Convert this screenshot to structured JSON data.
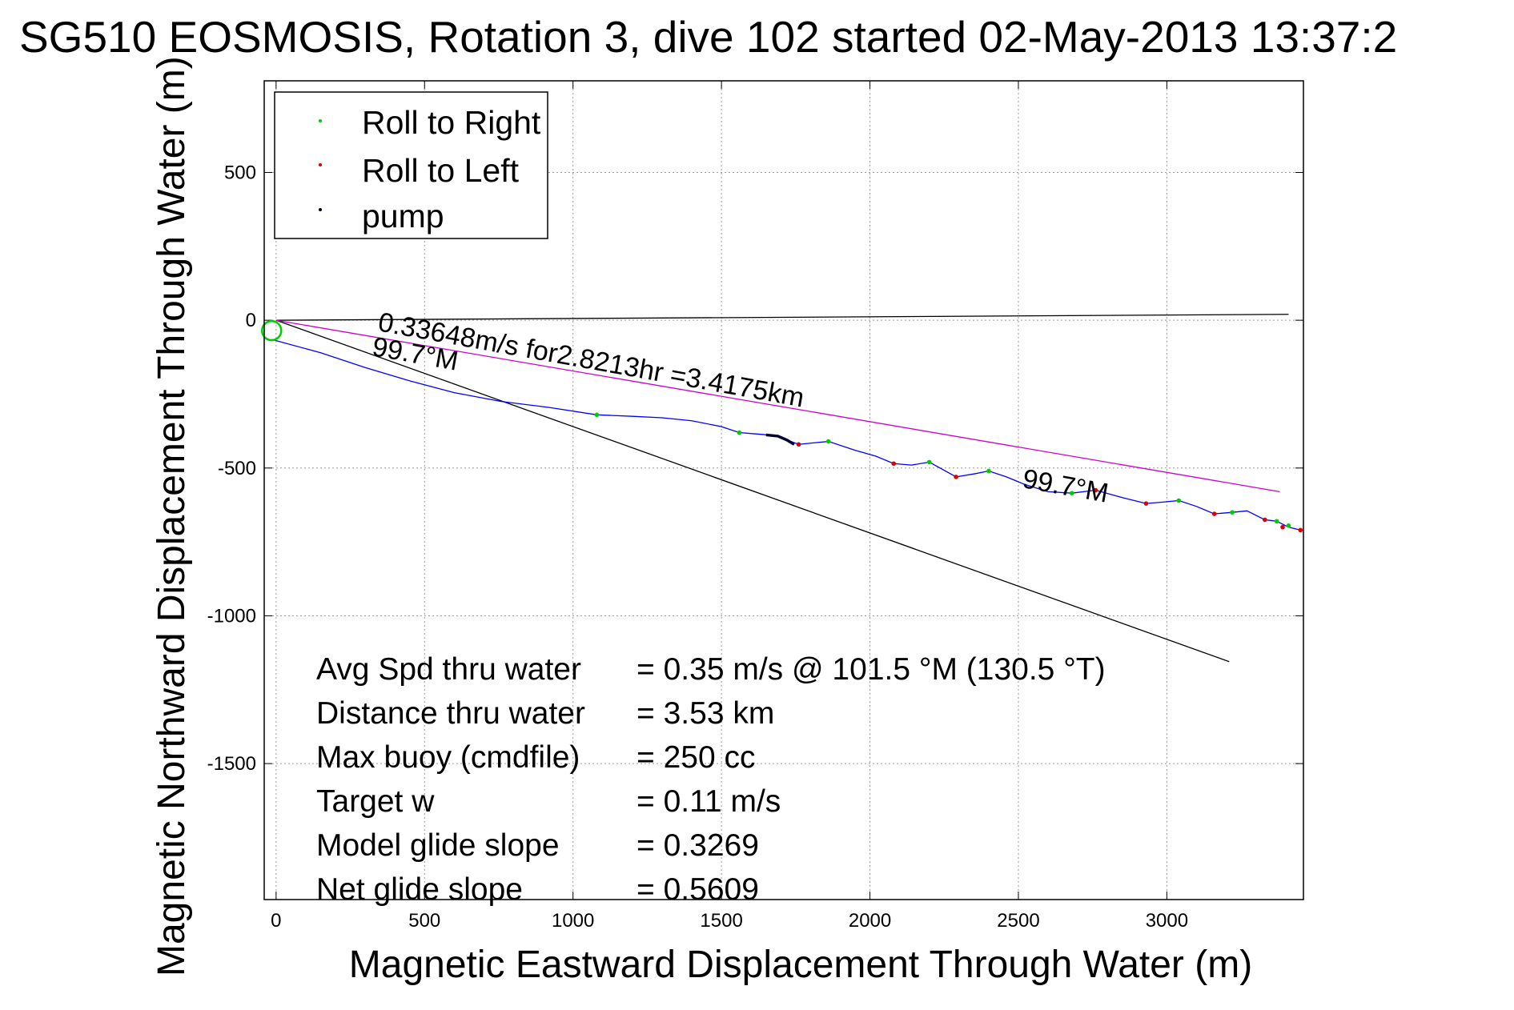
{
  "chart_data": {
    "type": "line",
    "title": "SG510 EOSMOSIS, Rotation 3, dive 102 started 02-May-2013 13:37:2",
    "xlabel": "Magnetic Eastward Displacement Through Water (m)",
    "ylabel": "Magnetic Northward Displacement Through Water (m)",
    "xlim": [
      -40,
      3460
    ],
    "ylim": [
      -1960,
      810
    ],
    "xticks": [
      0,
      500,
      1000,
      1500,
      2000,
      2500,
      3000
    ],
    "yticks": [
      500,
      0,
      -500,
      -1000,
      -1500
    ],
    "grid": true,
    "legend": {
      "placement": "top-left",
      "entries": [
        {
          "label": "Roll to Right",
          "color": "#00cc00"
        },
        {
          "label": "Roll to Left",
          "color": "#dd0000"
        },
        {
          "label": "pump",
          "color": "#000033"
        }
      ]
    },
    "track": {
      "color": "#0000ff",
      "x": [
        -15,
        150,
        300,
        450,
        600,
        760,
        920,
        1080,
        1200,
        1300,
        1400,
        1500,
        1560,
        1620,
        1680,
        1760,
        1810,
        1860,
        1950,
        2020,
        2080,
        2140,
        2200,
        2290,
        2350,
        2400,
        2460,
        2520,
        2600,
        2680,
        2760,
        2850,
        2930,
        2990,
        3040,
        3100,
        3160,
        3220,
        3270,
        3330,
        3370,
        3410,
        3450
      ],
      "y": [
        -65,
        -110,
        -160,
        -205,
        -245,
        -275,
        -295,
        -320,
        -325,
        -330,
        -340,
        -360,
        -380,
        -385,
        -390,
        -420,
        -415,
        -410,
        -440,
        -460,
        -485,
        -490,
        -480,
        -530,
        -520,
        -510,
        -530,
        -555,
        -580,
        -585,
        -575,
        -600,
        -620,
        -615,
        -610,
        -630,
        -655,
        -650,
        -645,
        -675,
        -680,
        -700,
        -710
      ]
    },
    "roll_right_points": {
      "color": "#00cc00",
      "x": [
        1080,
        1560,
        1860,
        2200,
        2400,
        2680,
        3040,
        3220,
        3370,
        3410
      ],
      "y": [
        -320,
        -380,
        -410,
        -480,
        -510,
        -585,
        -610,
        -650,
        -680,
        -695
      ]
    },
    "roll_left_points": {
      "color": "#dd0000",
      "x": [
        1760,
        2080,
        2290,
        2760,
        2930,
        3160,
        3330,
        3390,
        3450
      ],
      "y": [
        -420,
        -485,
        -530,
        -575,
        -620,
        -655,
        -675,
        -700,
        -710
      ]
    },
    "pump_segment": {
      "color": "#000033",
      "x": [
        1650,
        1690,
        1720,
        1745
      ],
      "y": [
        -388,
        -392,
        -405,
        -420
      ]
    },
    "start_marker": {
      "color": "#00cc00",
      "x": -15,
      "y": -35
    },
    "reference_lines": [
      {
        "color": "#000000",
        "x": [
          0,
          3410
        ],
        "y": [
          0,
          20
        ]
      },
      {
        "color": "#000000",
        "x": [
          0,
          3210
        ],
        "y": [
          0,
          -1155
        ]
      },
      {
        "color": "#cc00cc",
        "x": [
          0,
          3380
        ],
        "y": [
          0,
          -580
        ]
      }
    ],
    "annotations": [
      {
        "text": "0.33648m/s for2.8213hr =3.4175km",
        "x": 340,
        "y": -35,
        "angle": 10.2
      },
      {
        "text": "99.7°M",
        "x": 320,
        "y": -118,
        "angle": 10.2
      },
      {
        "text": "99.7°M",
        "x": 2510,
        "y": -565,
        "angle": 10.2
      }
    ],
    "stats": [
      {
        "label": "Avg Spd thru water",
        "value": "=  0.35 m/s @ 101.5 °M (130.5 °T)"
      },
      {
        "label": "Distance thru water",
        "value": "=  3.53 km"
      },
      {
        "label": "Max buoy (cmdfile)",
        "value": "= 250 cc"
      },
      {
        "label": "Target w",
        "value": "= 0.11 m/s"
      },
      {
        "label": "Model glide slope",
        "value": "= 0.3269"
      },
      {
        "label": "Net glide slope",
        "value": "= 0.5609"
      }
    ]
  }
}
